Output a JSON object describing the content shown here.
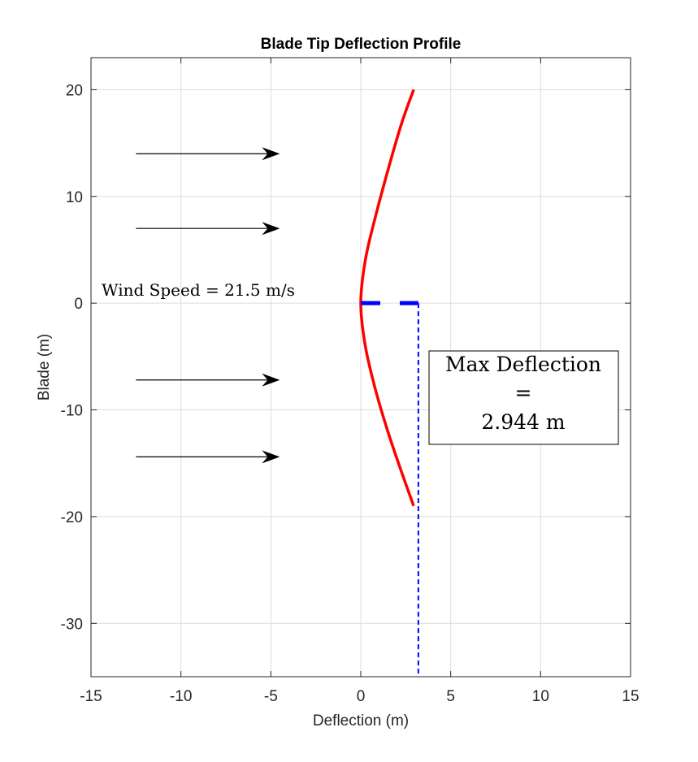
{
  "chart_data": {
    "type": "line",
    "title": "Blade Tip Deflection Profile",
    "xlabel": "Deflection (m)",
    "ylabel": "Blade (m)",
    "xlim": [
      -15,
      15
    ],
    "ylim": [
      -35,
      23
    ],
    "xticks": [
      -15,
      -10,
      -5,
      0,
      5,
      10,
      15
    ],
    "yticks": [
      -30,
      -20,
      -10,
      0,
      10,
      20
    ],
    "grid": true,
    "series": [
      {
        "type": "line",
        "color": "#ff0000",
        "points": [
          [
            2.94,
            20
          ],
          [
            2.3,
            17
          ],
          [
            1.6,
            13
          ],
          [
            0.8,
            8
          ],
          [
            0.25,
            4
          ],
          [
            0.0,
            0
          ],
          [
            0.25,
            -4
          ],
          [
            0.8,
            -8
          ],
          [
            1.5,
            -12
          ],
          [
            2.2,
            -15.5
          ],
          [
            2.94,
            -19
          ]
        ]
      },
      {
        "type": "dashed-line",
        "color": "#0000ff",
        "points": [
          [
            0,
            0
          ],
          [
            3.2,
            0
          ]
        ]
      },
      {
        "type": "dotted-line",
        "color": "#0000ff",
        "points": [
          [
            3.2,
            0
          ],
          [
            3.2,
            -35
          ]
        ]
      }
    ],
    "arrows": [
      {
        "x_start": -12.5,
        "x_end": -4.5,
        "y": 14
      },
      {
        "x_start": -12.5,
        "x_end": -4.5,
        "y": 7
      },
      {
        "x_start": -12.5,
        "x_end": -4.5,
        "y": -7.2
      },
      {
        "x_start": -12.5,
        "x_end": -4.5,
        "y": -14.4
      }
    ],
    "annotations": {
      "wind_speed": "Wind Speed = 21.5 m/s",
      "max_deflection_line1": "Max Deflection",
      "max_deflection_line2": "=",
      "max_deflection_line3": "2.944 m"
    }
  }
}
